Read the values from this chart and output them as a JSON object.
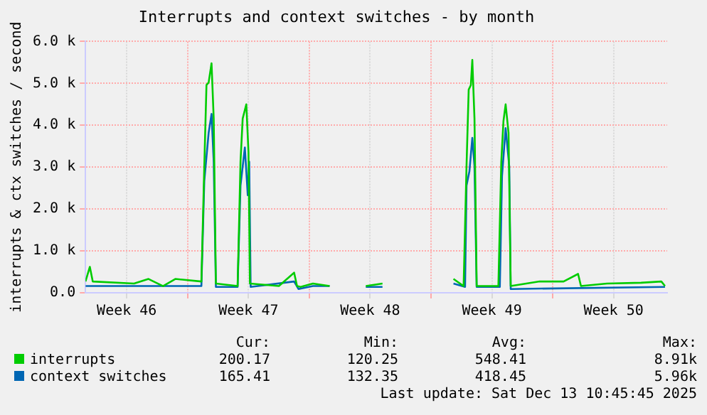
{
  "chart_data": {
    "type": "line",
    "title": "Interrupts and context switches - by month",
    "ylabel": "interrupts & ctx switches / second",
    "xlim": [
      "2025-11-10T03:00",
      "2025-12-13T14:00"
    ],
    "xticks": [
      {
        "value": "2025-11-12T12:00",
        "label": "Week 46"
      },
      {
        "value": "2025-11-16T00:00",
        "label": null
      },
      {
        "value": "2025-11-19T12:00",
        "label": "Week 47"
      },
      {
        "value": "2025-11-23T00:00",
        "label": null
      },
      {
        "value": "2025-11-26T12:00",
        "label": "Week 48"
      },
      {
        "value": "2025-11-30T00:00",
        "label": null
      },
      {
        "value": "2025-12-03T12:00",
        "label": "Week 49"
      },
      {
        "value": "2025-12-07T00:00",
        "label": null
      },
      {
        "value": "2025-12-10T12:00",
        "label": "Week 50"
      }
    ],
    "ylim": [
      0,
      6000
    ],
    "yticks": [
      {
        "value": 0,
        "label": "0.0"
      },
      {
        "value": 1000,
        "label": "1.0 k"
      },
      {
        "value": 2000,
        "label": "2.0 k"
      },
      {
        "value": 3000,
        "label": "3.0 k"
      },
      {
        "value": 4000,
        "label": "4.0 k"
      },
      {
        "value": 5000,
        "label": "5.0 k"
      },
      {
        "value": 6000,
        "label": "6.0 k"
      }
    ],
    "grid": true,
    "legend": "bottom left",
    "marker": "none",
    "line_style": "solid",
    "series": [
      {
        "name": "interrupts",
        "color": "#00cc00",
        "x": [
          "2025-11-10T03:00",
          "2025-11-10T09:00",
          "2025-11-10T13:00",
          "2025-11-12T22:00",
          "2025-11-13T18:00",
          "2025-11-14T14:00",
          "2025-11-15T07:00",
          "2025-11-16T19:00",
          "2025-11-16T23:00",
          "2025-11-17T02:00",
          "2025-11-17T05:00",
          "2025-11-17T09:00",
          "2025-11-17T12:00",
          "2025-11-17T15:00",
          "2025-11-18T21:00",
          "2025-11-19T01:00",
          "2025-11-19T04:00",
          "2025-11-19T09:00",
          "2025-11-19T12:00",
          "2025-11-19T14:00",
          "2025-11-21T06:00",
          "2025-11-22T03:00",
          "2025-11-22T07:00",
          "2025-11-22T12:00",
          "2025-11-23T05:00",
          "2025-11-24T04:00",
          "2025-11-25T02:00",
          "2025-11-26T06:00",
          "2025-11-27T05:00",
          "2025-11-29T07:00",
          "2025-12-01T07:00",
          "2025-12-01T21:00",
          "2025-12-02T01:00",
          "2025-12-02T04:00",
          "2025-12-02T07:00",
          "2025-12-02T09:00",
          "2025-12-02T12:00",
          "2025-12-02T15:00",
          "2025-12-03T21:00",
          "2025-12-04T01:00",
          "2025-12-04T04:00",
          "2025-12-04T07:00",
          "2025-12-04T11:00",
          "2025-12-04T14:00",
          "2025-12-06T06:00",
          "2025-12-07T15:00",
          "2025-12-08T11:00",
          "2025-12-08T15:00",
          "2025-12-10T03:00",
          "2025-12-12T02:00",
          "2025-12-13T06:00",
          "2025-12-13T11:00"
        ],
        "values": [
          270,
          620,
          270,
          220,
          330,
          160,
          330,
          270,
          3020,
          4960,
          5020,
          5480,
          4160,
          220,
          160,
          3130,
          4160,
          4500,
          3360,
          220,
          160,
          480,
          160,
          140,
          220,
          160,
          null,
          160,
          220,
          null,
          330,
          160,
          3020,
          4850,
          4960,
          5560,
          4160,
          160,
          160,
          3130,
          4100,
          4500,
          3820,
          160,
          270,
          270,
          450,
          160,
          220,
          240,
          270,
          160
        ]
      },
      {
        "name": "context switches",
        "color": "#0066b3",
        "x": [
          "2025-11-10T03:00",
          "2025-11-12T22:00",
          "2025-11-16T19:00",
          "2025-11-16T23:00",
          "2025-11-17T05:00",
          "2025-11-17T09:00",
          "2025-11-17T12:00",
          "2025-11-17T15:00",
          "2025-11-18T21:00",
          "2025-11-19T01:00",
          "2025-11-19T07:00",
          "2025-11-19T11:00",
          "2025-11-19T13:00",
          "2025-11-19T15:00",
          "2025-11-22T03:00",
          "2025-11-22T09:00",
          "2025-11-23T05:00",
          "2025-11-24T04:00",
          "2025-11-25T02:00",
          "2025-11-26T06:00",
          "2025-11-27T05:00",
          "2025-11-29T07:00",
          "2025-12-01T07:00",
          "2025-12-01T23:00",
          "2025-12-02T01:00",
          "2025-12-02T05:00",
          "2025-12-02T09:00",
          "2025-12-02T12:00",
          "2025-12-02T15:00",
          "2025-12-03T23:00",
          "2025-12-04T02:00",
          "2025-12-04T07:00",
          "2025-12-04T12:00",
          "2025-12-04T14:00",
          "2025-12-13T11:00"
        ],
        "values": [
          160,
          160,
          160,
          2670,
          3820,
          4270,
          3130,
          140,
          140,
          2560,
          3470,
          2330,
          3130,
          140,
          270,
          90,
          160,
          160,
          null,
          140,
          140,
          null,
          220,
          140,
          2560,
          2900,
          3700,
          3020,
          140,
          140,
          2790,
          3930,
          3020,
          90,
          140
        ]
      }
    ],
    "annotations": [
      "Cur:",
      "Min:",
      "Avg:",
      "Max:",
      "200.17",
      "120.25",
      "548.41",
      "8.91k",
      "165.41",
      "132.35",
      "418.45",
      "5.96k",
      "Last update: Sat Dec 13 10:45:45 2025"
    ]
  }
}
